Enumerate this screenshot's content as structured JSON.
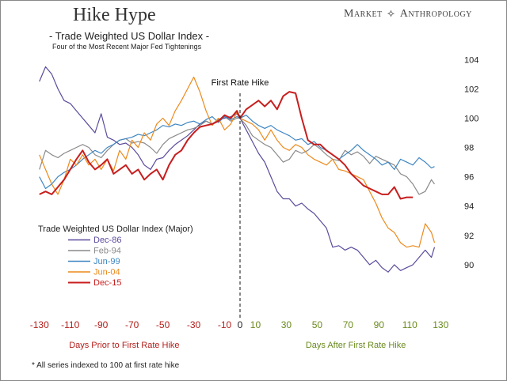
{
  "header": {
    "title": "Hike Hype",
    "subtitle": "- Trade Weighted US Dollar Index -",
    "subsubtitle": "Four of the Most Recent Major Fed Tightenings",
    "brand_left": "Market",
    "brand_right": "Anthropology",
    "brand_symbol": "⟡"
  },
  "footnote": "* All series indexed to 100 at first rate hike",
  "chart_data": {
    "type": "line",
    "title": "Hike Hype",
    "subtitle": "Trade Weighted US Dollar Index",
    "xlabel_left": "Days Prior to First Rate Hike",
    "xlabel_right": "Days After First Rate Hike",
    "legend_title": "Trade Weighted US Dollar Index (Major)",
    "annotation": "First Rate Hike",
    "xlim": [
      -135,
      135
    ],
    "ylim": [
      88,
      104.5
    ],
    "x_ticks": [
      -130,
      -110,
      -90,
      -70,
      -50,
      -30,
      -10,
      0,
      10,
      30,
      50,
      70,
      90,
      110,
      130
    ],
    "y_ticks": [
      90,
      92,
      94,
      96,
      98,
      100,
      102,
      104
    ],
    "colors": {
      "negative_ticks": "#b3201c",
      "positive_ticks": "#6a8a1c",
      "zero_tick": "#222222"
    },
    "series": [
      {
        "name": "Dec-86",
        "color": "#5b4a9c",
        "x": [
          -130,
          -126,
          -122,
          -118,
          -114,
          -110,
          -106,
          -102,
          -98,
          -94,
          -90,
          -86,
          -82,
          -78,
          -74,
          -70,
          -66,
          -62,
          -58,
          -54,
          -50,
          -46,
          -42,
          -38,
          -34,
          -30,
          -26,
          -22,
          -18,
          -14,
          -10,
          -6,
          -2,
          0,
          4,
          8,
          12,
          16,
          20,
          24,
          28,
          32,
          36,
          40,
          44,
          48,
          52,
          56,
          60,
          64,
          68,
          72,
          76,
          80,
          84,
          88,
          92,
          96,
          100,
          104,
          108,
          112,
          116,
          120,
          124,
          126
        ],
        "values": [
          102.5,
          103.5,
          103,
          102,
          101.2,
          101,
          100.5,
          100,
          99.5,
          99,
          100.3,
          98.7,
          98.5,
          98.2,
          98.3,
          98,
          97.5,
          96.8,
          96.5,
          97.2,
          97.3,
          97.8,
          98.2,
          98.5,
          98.8,
          99.2,
          99.6,
          99.8,
          99.6,
          99.9,
          100,
          100.1,
          100.3,
          100,
          99.2,
          98.4,
          97.6,
          97,
          96,
          95,
          94.5,
          94.5,
          94,
          94.2,
          93.8,
          93.5,
          93,
          92.5,
          91.2,
          91.3,
          91,
          91.2,
          91,
          90.5,
          90,
          90.3,
          89.8,
          89.5,
          90,
          89.6,
          89.8,
          90,
          90.5,
          91,
          90.5,
          91.2
        ]
      },
      {
        "name": "Feb-94",
        "color": "#8a8a8a",
        "x": [
          -130,
          -126,
          -122,
          -118,
          -114,
          -110,
          -106,
          -102,
          -98,
          -94,
          -90,
          -86,
          -82,
          -78,
          -74,
          -70,
          -66,
          -62,
          -58,
          -54,
          -50,
          -46,
          -42,
          -38,
          -34,
          -30,
          -26,
          -22,
          -18,
          -14,
          -10,
          -6,
          -2,
          0,
          4,
          8,
          12,
          16,
          20,
          24,
          28,
          32,
          36,
          40,
          44,
          48,
          52,
          56,
          60,
          64,
          68,
          72,
          76,
          80,
          84,
          88,
          92,
          96,
          100,
          104,
          108,
          112,
          116,
          120,
          124,
          126
        ],
        "values": [
          96.5,
          97.8,
          97.5,
          97.3,
          97.6,
          97.8,
          98,
          98.2,
          98,
          97.5,
          97.3,
          97.8,
          98.2,
          98.5,
          98.6,
          98.3,
          98.4,
          98.3,
          98,
          97.6,
          98.2,
          98.6,
          98.8,
          99,
          99.2,
          99.3,
          99.5,
          99.8,
          99.6,
          99.9,
          100.1,
          99.8,
          100,
          100,
          99.5,
          98.8,
          98.5,
          98.2,
          98,
          97.5,
          97,
          97.2,
          97.8,
          97.6,
          97.8,
          98.2,
          97.9,
          97.5,
          97.2,
          97.1,
          97.8,
          97.5,
          97.7,
          97.4,
          96.9,
          97.4,
          97.2,
          97,
          96.8,
          96.2,
          96,
          95.5,
          94.8,
          95,
          95.8,
          95.5
        ]
      },
      {
        "name": "Jun-99",
        "color": "#3e86c2",
        "x": [
          -130,
          -126,
          -122,
          -118,
          -114,
          -110,
          -106,
          -102,
          -98,
          -94,
          -90,
          -86,
          -82,
          -78,
          -74,
          -70,
          -66,
          -62,
          -58,
          -54,
          -50,
          -46,
          -42,
          -38,
          -34,
          -30,
          -26,
          -22,
          -18,
          -14,
          -10,
          -6,
          -2,
          0,
          4,
          8,
          12,
          16,
          20,
          24,
          28,
          32,
          36,
          40,
          44,
          48,
          52,
          56,
          60,
          64,
          68,
          72,
          76,
          80,
          84,
          88,
          92,
          96,
          100,
          104,
          108,
          112,
          116,
          120,
          124,
          126
        ],
        "values": [
          96,
          95.2,
          95.5,
          96,
          96.3,
          96.5,
          96.8,
          97.2,
          97.5,
          97.8,
          97.6,
          98,
          98.2,
          98.5,
          98.6,
          98.7,
          98.9,
          98.8,
          99,
          99.2,
          99.5,
          99.4,
          99.6,
          99.5,
          99.7,
          99.8,
          99.6,
          99.9,
          100.1,
          99.7,
          100.1,
          99.9,
          100.1,
          100,
          100.2,
          99.8,
          99.5,
          99.3,
          99.5,
          99.2,
          99,
          98.8,
          98.5,
          98.6,
          98.2,
          98.4,
          98,
          97.8,
          97.5,
          97.2,
          97.5,
          97.8,
          98.2,
          97.8,
          97.5,
          97.2,
          96.8,
          97,
          96.5,
          97.2,
          97,
          96.8,
          97.3,
          97,
          96.6,
          96.7
        ]
      },
      {
        "name": "Jun-04",
        "color": "#ec8a1c",
        "x": [
          -130,
          -126,
          -122,
          -118,
          -114,
          -110,
          -106,
          -102,
          -98,
          -94,
          -90,
          -86,
          -82,
          -78,
          -74,
          -70,
          -66,
          -62,
          -58,
          -54,
          -50,
          -46,
          -42,
          -38,
          -34,
          -30,
          -26,
          -22,
          -18,
          -14,
          -10,
          -6,
          -2,
          0,
          4,
          8,
          12,
          16,
          20,
          24,
          28,
          32,
          36,
          40,
          44,
          48,
          52,
          56,
          60,
          64,
          68,
          72,
          76,
          80,
          84,
          88,
          92,
          96,
          100,
          104,
          108,
          112,
          116,
          120,
          124,
          126
        ],
        "values": [
          97.5,
          96.5,
          95.5,
          94.8,
          95.8,
          97.2,
          96.8,
          97.5,
          96.8,
          97.2,
          96.5,
          97.2,
          96.4,
          97.8,
          97.2,
          98.5,
          98,
          99,
          98.5,
          99.6,
          100,
          99.5,
          100.5,
          101.2,
          102,
          102.8,
          101.8,
          100.5,
          99.5,
          100,
          99.2,
          99.6,
          100.4,
          100,
          99.8,
          99.6,
          99.2,
          98.5,
          99.2,
          98.5,
          98,
          97.8,
          98.2,
          98,
          97.5,
          97.2,
          97,
          96.8,
          97.2,
          96.5,
          96.4,
          96.2,
          96,
          95.8,
          95,
          94.2,
          93.2,
          92.5,
          92.2,
          91.5,
          91.2,
          91.3,
          91.2,
          92.8,
          92.2,
          91.5
        ]
      },
      {
        "name": "Dec-15",
        "color": "#c81e1e",
        "x": [
          -130,
          -126,
          -122,
          -118,
          -114,
          -110,
          -106,
          -102,
          -98,
          -94,
          -90,
          -86,
          -82,
          -78,
          -74,
          -70,
          -66,
          -62,
          -58,
          -54,
          -50,
          -46,
          -42,
          -38,
          -34,
          -30,
          -26,
          -22,
          -18,
          -14,
          -10,
          -6,
          -2,
          0,
          4,
          8,
          12,
          16,
          20,
          24,
          28,
          32,
          36,
          40,
          44,
          48,
          52,
          56,
          60,
          64,
          68,
          72,
          76,
          80,
          84,
          88,
          92,
          96,
          100,
          104,
          108,
          112
        ],
        "values": [
          94.8,
          95,
          94.8,
          95.3,
          95.8,
          96.5,
          97.2,
          97.8,
          97,
          96.5,
          96.8,
          97.2,
          96.2,
          96.5,
          96.8,
          96.2,
          96.5,
          95.8,
          96.2,
          96.5,
          95.8,
          96.8,
          97.5,
          97.8,
          98.5,
          99,
          99.4,
          99.5,
          99.6,
          99.8,
          100.2,
          100,
          100.5,
          100,
          100.6,
          100.9,
          101.2,
          100.8,
          101.2,
          100.6,
          101.5,
          101.8,
          101.7,
          100,
          98.5,
          98.2,
          98.2,
          97.8,
          97.5,
          97.2,
          96.8,
          96.2,
          95.8,
          95.4,
          95.2,
          95,
          94.8,
          94.8,
          95.3,
          94.5,
          94.6,
          94.6
        ]
      }
    ]
  }
}
